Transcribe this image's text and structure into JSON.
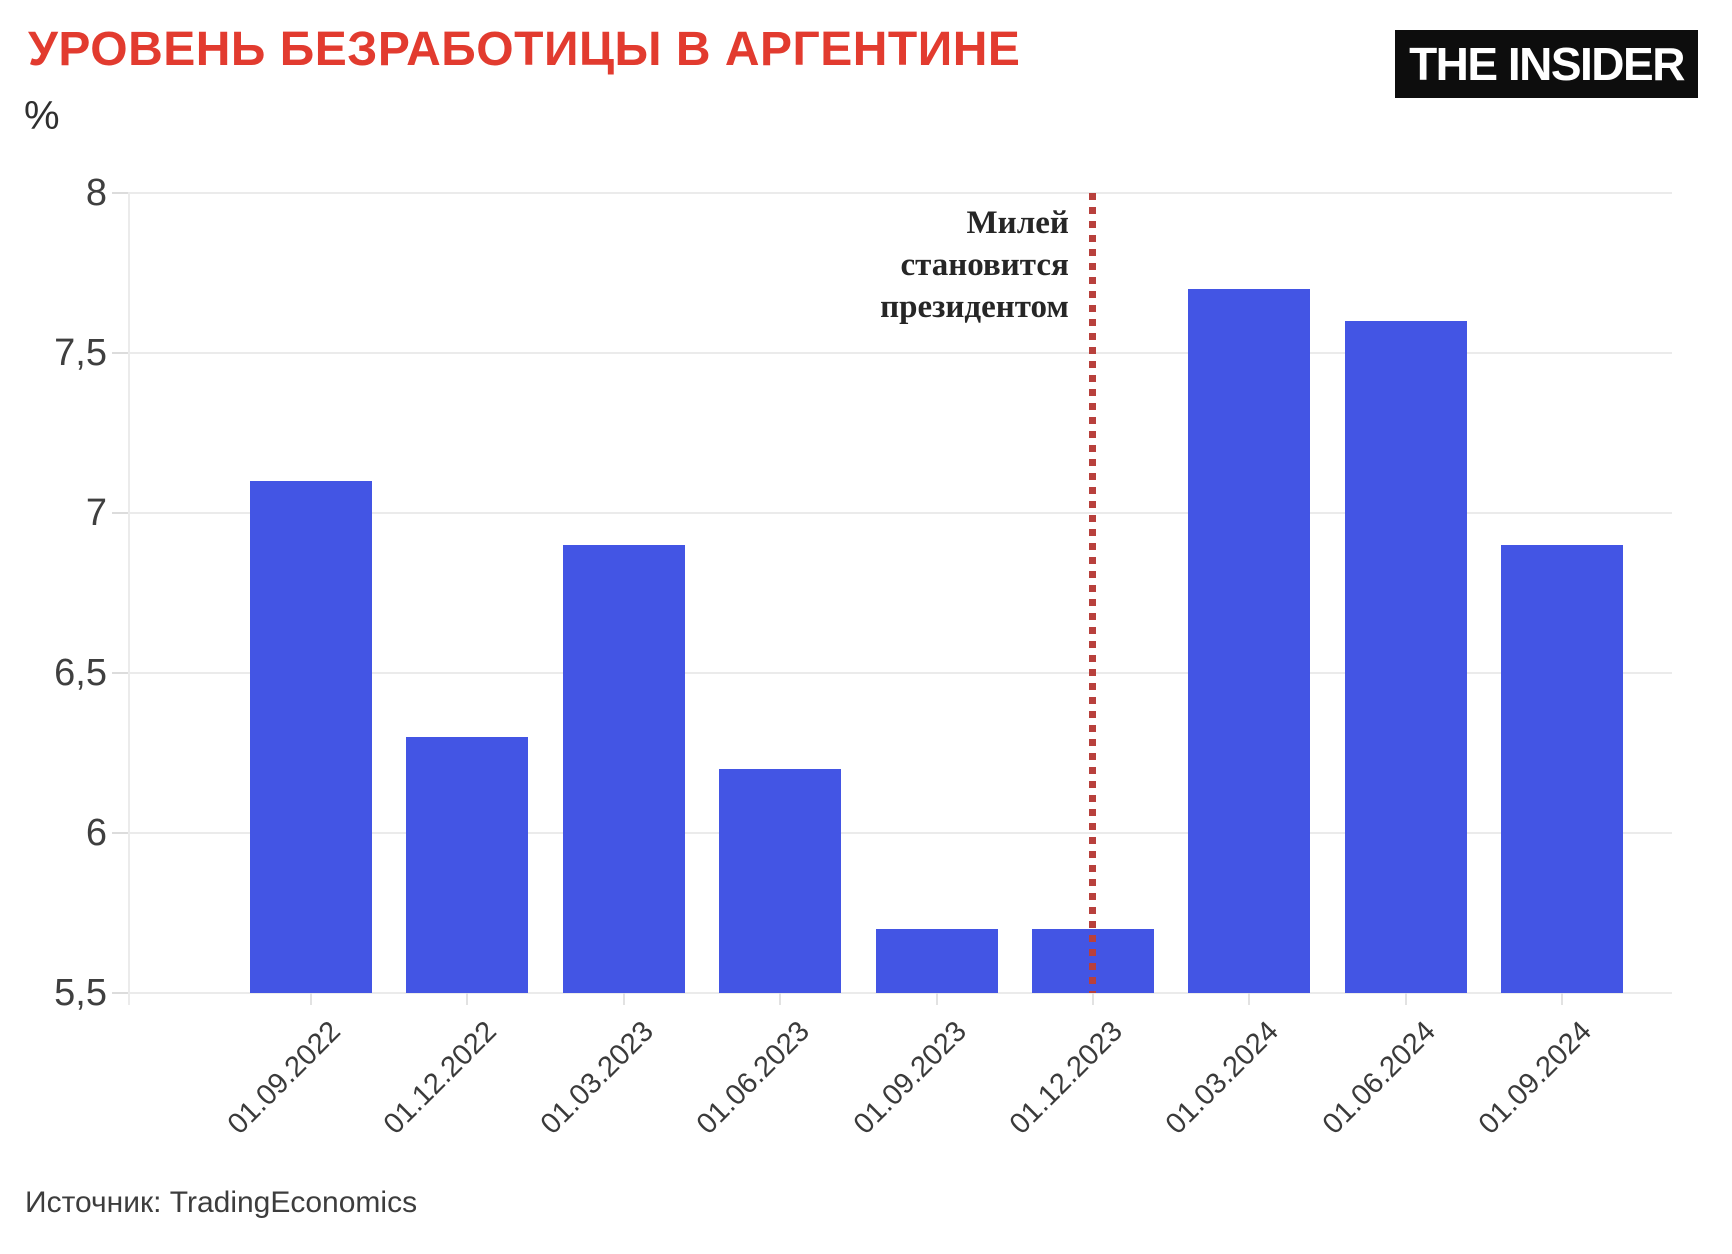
{
  "header": {
    "title": "УРОВЕНЬ БЕЗРАБОТИЦЫ В АРГЕНТИНЕ",
    "unit_label": "%",
    "logo_text": "THE INSIDER"
  },
  "footer": {
    "source": "Источник: TradingEconomics"
  },
  "annotation": {
    "lines": [
      "Милей",
      "становится",
      "президентом"
    ]
  },
  "colors": {
    "title": "#e23b2f",
    "bar": "#4355e4",
    "event_line": "#b8403c",
    "gridline": "#ebebeb",
    "logo_bg": "#0d0d0d",
    "logo_text": "#ffffff"
  },
  "chart_data": {
    "type": "bar",
    "title": "УРОВЕНЬ БЕЗРАБОТИЦЫ В АРГЕНТИНЕ",
    "xlabel": "",
    "ylabel": "%",
    "categories": [
      "01.09.2022",
      "01.12.2022",
      "01.03.2023",
      "01.06.2023",
      "01.09.2023",
      "01.12.2023",
      "01.03.2024",
      "01.06.2024",
      "01.09.2024"
    ],
    "values": [
      7.1,
      6.3,
      6.9,
      6.2,
      5.7,
      5.7,
      7.7,
      7.6,
      6.9
    ],
    "ylim": [
      5.5,
      8
    ],
    "ytick_values": [
      8,
      7.5,
      7,
      6.5,
      6,
      5.5
    ],
    "ytick_labels": [
      "8",
      "7,5",
      "7",
      "6,5",
      "6",
      "5,5"
    ],
    "grid": true,
    "legend": "none",
    "annotation": {
      "text": "Милей становится президентом",
      "x_category": "01.12.2023",
      "style": "vertical-dotted-line"
    },
    "source": "Источник: TradingEconomics"
  }
}
